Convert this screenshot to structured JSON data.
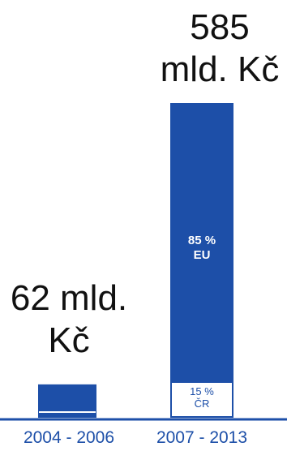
{
  "colors": {
    "bar": "#1d4fa8",
    "baseline": "#1d4fa8",
    "text": "#111111",
    "category": "#1d4fa8"
  },
  "chart_data": {
    "type": "bar",
    "categories": [
      "2004 - 2006",
      "2007 - 2013"
    ],
    "values": [
      62,
      585
    ],
    "unit": "mld. Kč",
    "value_labels": [
      {
        "line1": "62 mld.",
        "line2": "Kč"
      },
      {
        "line1": "585",
        "line2": "mld. Kč"
      }
    ],
    "breakdown": [
      {
        "category": "2007 - 2013",
        "segments": [
          {
            "pct": "85 %",
            "name": "EU"
          },
          {
            "pct": "15 %",
            "name": "ČR"
          }
        ]
      }
    ],
    "title": "",
    "xlabel": "",
    "ylabel": "",
    "grid": false,
    "legend": "none"
  }
}
